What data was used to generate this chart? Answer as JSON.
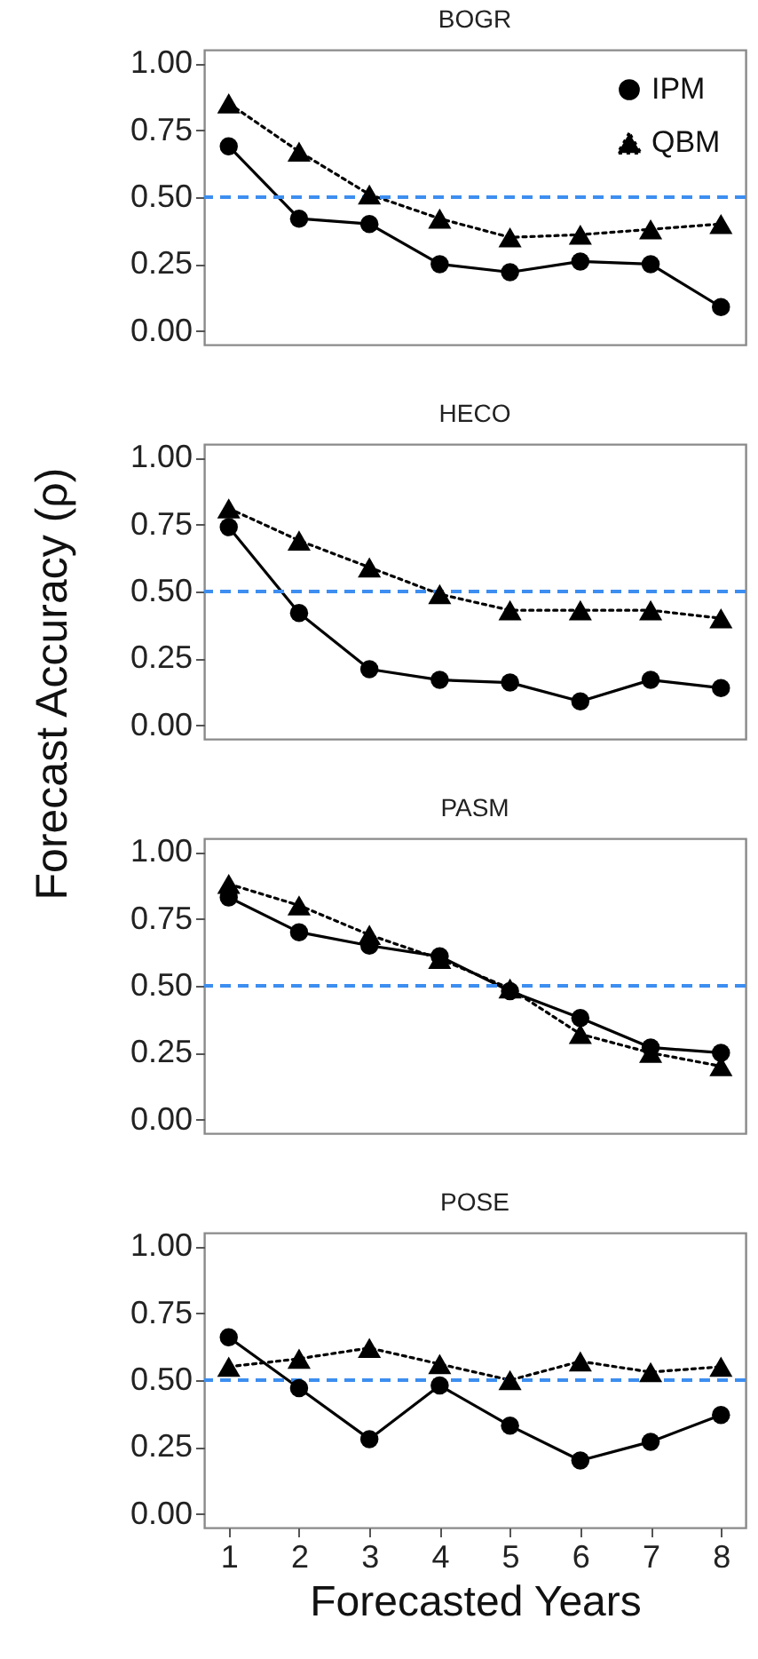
{
  "chart_data": [
    {
      "type": "line",
      "title": "BOGR",
      "x": [
        1,
        2,
        3,
        4,
        5,
        6,
        7,
        8
      ],
      "xlim": [
        0.65,
        8.35
      ],
      "ylim": [
        -0.05,
        1.05
      ],
      "yticks": [
        {
          "value": 0,
          "label": "0.00"
        },
        {
          "value": 0.25,
          "label": "0.25"
        },
        {
          "value": 0.5,
          "label": "0.50"
        },
        {
          "value": 0.75,
          "label": "0.75"
        },
        {
          "value": 1,
          "label": "1.00"
        }
      ],
      "grid": false,
      "legend": "top right",
      "tick_labels": "y",
      "ref_lines": [
        {
          "axis": "y",
          "value": 0.5,
          "color": "#3d8ef0",
          "line_style": "dashed"
        }
      ],
      "series": [
        {
          "name": "IPM",
          "color": "#000000",
          "marker": "circle",
          "line_style": "solid",
          "values": [
            0.69,
            0.42,
            0.4,
            0.25,
            0.22,
            0.26,
            0.25,
            0.09
          ]
        },
        {
          "name": "QBM",
          "color": "#000000",
          "marker": "triangle",
          "line_style": "dotted",
          "values": [
            0.85,
            0.67,
            0.51,
            0.42,
            0.35,
            0.36,
            0.38,
            0.4
          ]
        }
      ]
    },
    {
      "type": "line",
      "title": "HECO",
      "ylabel": "Forecast Accuracy (ρ)",
      "x": [
        1,
        2,
        3,
        4,
        5,
        6,
        7,
        8
      ],
      "xlim": [
        0.65,
        8.35
      ],
      "ylim": [
        -0.05,
        1.05
      ],
      "yticks": [
        {
          "value": 0,
          "label": "0.00"
        },
        {
          "value": 0.25,
          "label": "0.25"
        },
        {
          "value": 0.5,
          "label": "0.50"
        },
        {
          "value": 0.75,
          "label": "0.75"
        },
        {
          "value": 1,
          "label": "1.00"
        }
      ],
      "grid": false,
      "tick_labels": "y",
      "ref_lines": [
        {
          "axis": "y",
          "value": 0.5,
          "color": "#3d8ef0",
          "line_style": "dashed"
        }
      ],
      "series": [
        {
          "color": "#000000",
          "marker": "circle",
          "line_style": "solid",
          "values": [
            0.74,
            0.42,
            0.21,
            0.17,
            0.16,
            0.09,
            0.17,
            0.14
          ]
        },
        {
          "color": "#000000",
          "marker": "triangle",
          "line_style": "dotted",
          "values": [
            0.81,
            0.69,
            0.59,
            0.49,
            0.43,
            0.43,
            0.43,
            0.4
          ]
        }
      ]
    },
    {
      "type": "line",
      "title": "PASM",
      "x": [
        1,
        2,
        3,
        4,
        5,
        6,
        7,
        8
      ],
      "xlim": [
        0.65,
        8.35
      ],
      "ylim": [
        -0.05,
        1.05
      ],
      "yticks": [
        {
          "value": 0,
          "label": "0.00"
        },
        {
          "value": 0.25,
          "label": "0.25"
        },
        {
          "value": 0.5,
          "label": "0.50"
        },
        {
          "value": 0.75,
          "label": "0.75"
        },
        {
          "value": 1,
          "label": "1.00"
        }
      ],
      "grid": false,
      "tick_labels": "y",
      "ref_lines": [
        {
          "axis": "y",
          "value": 0.5,
          "color": "#3d8ef0",
          "line_style": "dashed"
        }
      ],
      "series": [
        {
          "color": "#000000",
          "marker": "circle",
          "line_style": "solid",
          "values": [
            0.83,
            0.7,
            0.65,
            0.61,
            0.48,
            0.38,
            0.27,
            0.25
          ]
        },
        {
          "color": "#000000",
          "marker": "triangle",
          "line_style": "dotted",
          "values": [
            0.88,
            0.8,
            0.69,
            0.6,
            0.49,
            0.32,
            0.25,
            0.2
          ]
        }
      ]
    },
    {
      "type": "line",
      "title": "POSE",
      "xlabel": "Forecasted Years",
      "x": [
        1,
        2,
        3,
        4,
        5,
        6,
        7,
        8
      ],
      "xlim": [
        0.65,
        8.35
      ],
      "xticks": [
        1,
        2,
        3,
        4,
        5,
        6,
        7,
        8
      ],
      "ylim": [
        -0.05,
        1.05
      ],
      "yticks": [
        {
          "value": 0,
          "label": "0.00"
        },
        {
          "value": 0.25,
          "label": "0.25"
        },
        {
          "value": 0.5,
          "label": "0.50"
        },
        {
          "value": 0.75,
          "label": "0.75"
        },
        {
          "value": 1,
          "label": "1.00"
        }
      ],
      "grid": false,
      "ref_lines": [
        {
          "axis": "y",
          "value": 0.5,
          "color": "#3d8ef0",
          "line_style": "dashed"
        }
      ],
      "series": [
        {
          "color": "#000000",
          "marker": "circle",
          "line_style": "solid",
          "values": [
            0.66,
            0.47,
            0.28,
            0.48,
            0.33,
            0.2,
            0.27,
            0.37
          ]
        },
        {
          "color": "#000000",
          "marker": "triangle",
          "line_style": "dotted",
          "values": [
            0.55,
            0.58,
            0.62,
            0.56,
            0.5,
            0.57,
            0.53,
            0.55
          ]
        }
      ]
    }
  ]
}
